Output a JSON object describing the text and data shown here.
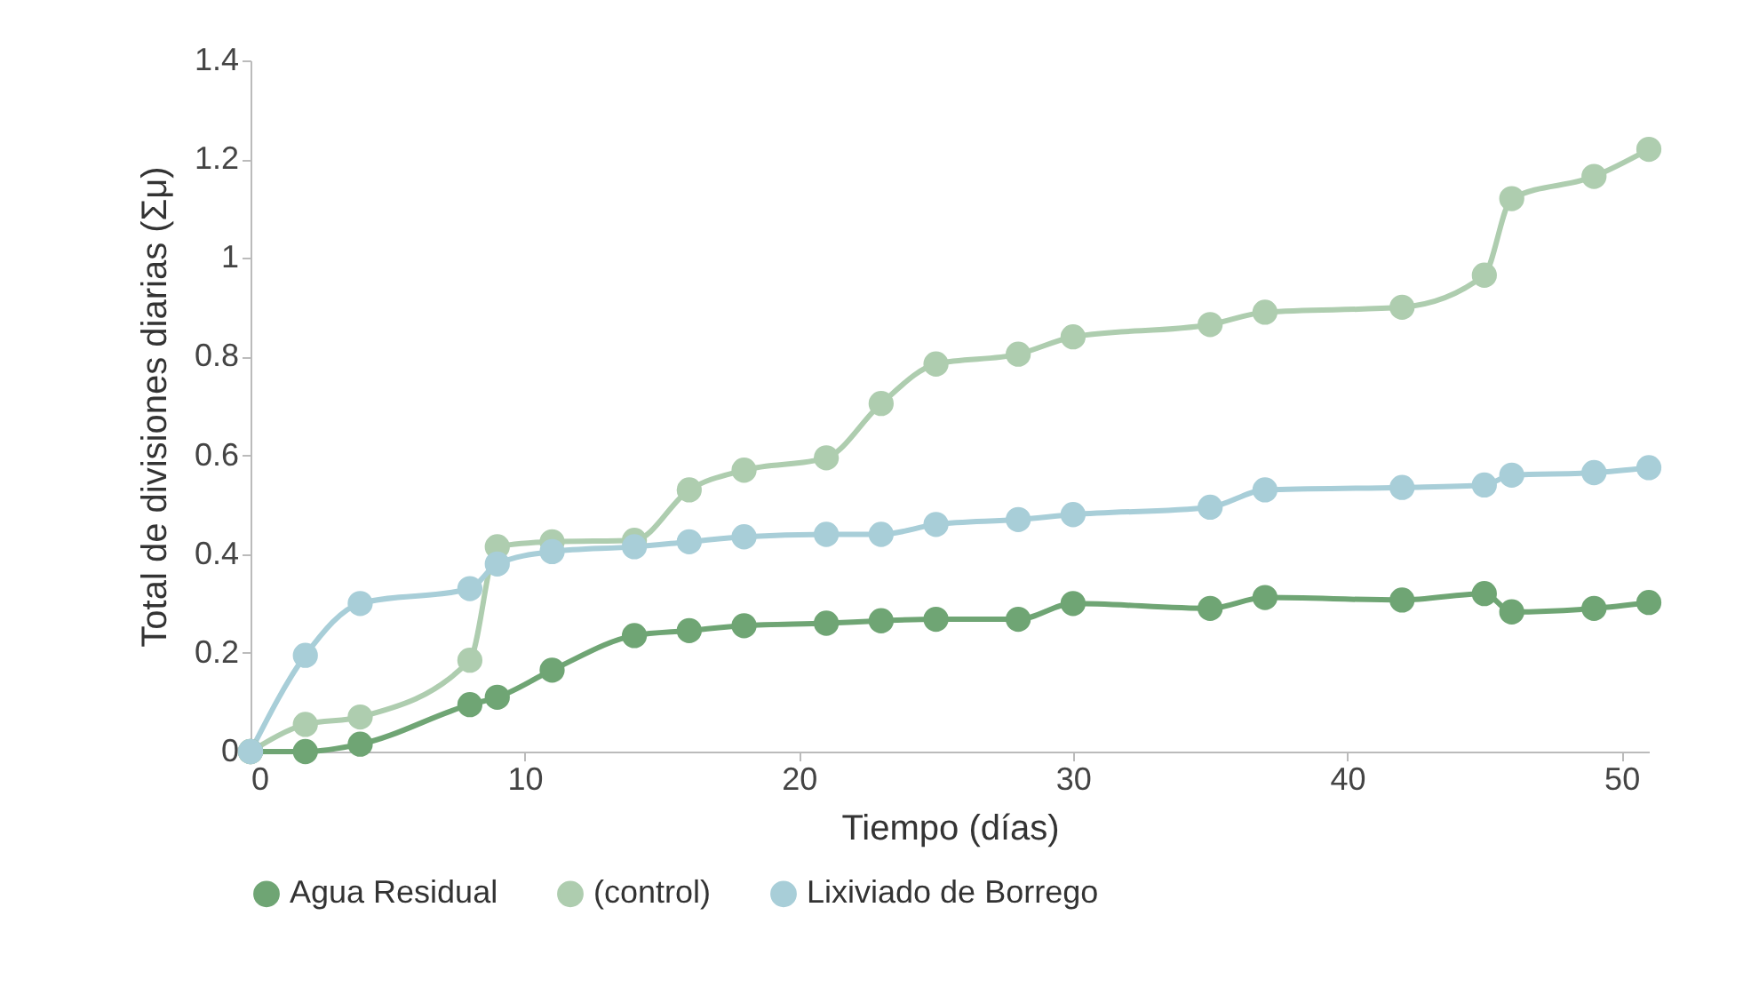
{
  "chart_data": {
    "type": "line",
    "xlabel": "Tiempo (días)",
    "ylabel": "Total de divisiones diarias (Σμ)",
    "x": [
      0,
      2,
      4,
      8,
      9,
      11,
      14,
      16,
      18,
      21,
      23,
      25,
      28,
      30,
      35,
      37,
      42,
      45,
      46,
      49,
      51
    ],
    "series": [
      {
        "name": "Agua Residual",
        "color": "#6fa574",
        "values": [
          0,
          0,
          0.015,
          0.095,
          0.11,
          0.165,
          0.235,
          0.245,
          0.255,
          0.26,
          0.265,
          0.268,
          0.268,
          0.3,
          0.29,
          0.312,
          0.307,
          0.32,
          0.283,
          0.29,
          0.302
        ]
      },
      {
        "name": "(control)",
        "color": "#aecdaf",
        "values": [
          0,
          0.055,
          0.07,
          0.185,
          0.415,
          0.425,
          0.428,
          0.53,
          0.57,
          0.595,
          0.705,
          0.785,
          0.805,
          0.84,
          0.865,
          0.89,
          0.9,
          0.965,
          1.12,
          1.165,
          1.22
        ]
      },
      {
        "name": "Lixiviado de Borrego",
        "color": "#a8ced8",
        "values": [
          0,
          0.195,
          0.3,
          0.33,
          0.38,
          0.405,
          0.415,
          0.425,
          0.435,
          0.44,
          0.44,
          0.46,
          0.47,
          0.48,
          0.495,
          0.53,
          0.535,
          0.54,
          0.56,
          0.565,
          0.575
        ]
      }
    ],
    "xlim": [
      0,
      51
    ],
    "xticks": [
      0,
      10,
      20,
      30,
      40,
      50
    ],
    "ylim": [
      0,
      1.4
    ],
    "yticks": [
      0,
      0.2,
      0.4,
      0.6,
      0.8,
      1,
      1.2,
      1.4
    ],
    "grid": false,
    "legend": "bottom",
    "marker": "circle",
    "line_style": "solid"
  }
}
